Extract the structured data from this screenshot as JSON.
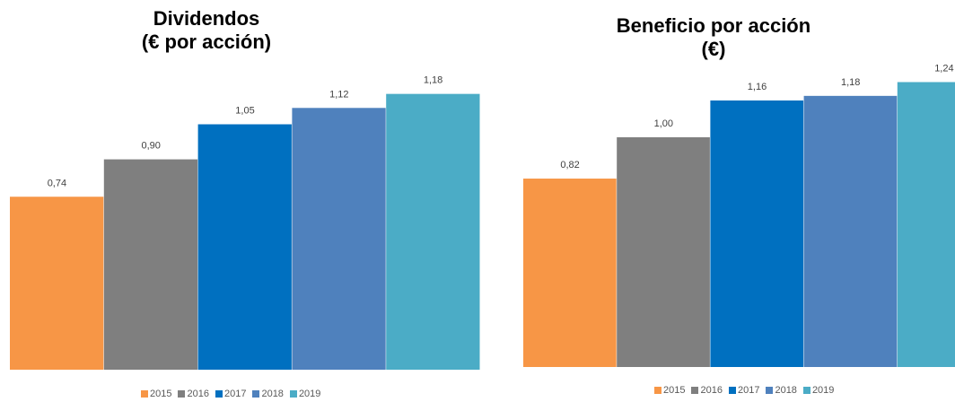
{
  "chart_data": [
    {
      "type": "bar",
      "title_lines": [
        "Dividendos",
        "(€ por acción)"
      ],
      "categories": [
        "2015",
        "2016",
        "2017",
        "2018",
        "2019"
      ],
      "values": [
        0.74,
        0.9,
        1.05,
        1.12,
        1.18
      ],
      "data_labels": [
        "0,74",
        "0,90",
        "1,05",
        "1,12",
        "1,18"
      ],
      "colors": [
        "#F79646",
        "#7F7F7F",
        "#0070C0",
        "#4F81BD",
        "#4BACC6"
      ],
      "ylim": [
        0,
        1.29
      ],
      "grid": false,
      "legend_position": "bottom"
    },
    {
      "type": "bar",
      "title_lines": [
        "Beneficio por acción",
        "(€)"
      ],
      "categories": [
        "2015",
        "2016",
        "2017",
        "2018",
        "2019"
      ],
      "values": [
        0.82,
        1.0,
        1.16,
        1.18,
        1.24
      ],
      "data_labels": [
        "0,82",
        "1,00",
        "1,16",
        "1,18",
        "1,24"
      ],
      "colors": [
        "#F79646",
        "#7F7F7F",
        "#0070C0",
        "#4F81BD",
        "#4BACC6"
      ],
      "ylim": [
        0,
        1.32
      ],
      "grid": false,
      "legend_position": "bottom"
    }
  ]
}
